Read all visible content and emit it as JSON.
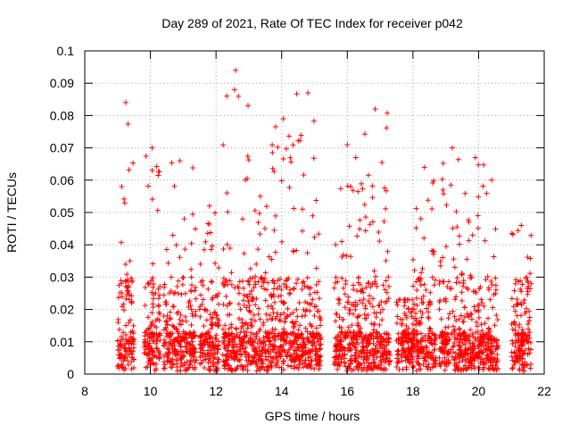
{
  "chart_data": {
    "type": "scatter",
    "title": "Day 289 of 2021, Rate Of TEC Index for receiver p042",
    "xlabel": "GPS time / hours",
    "ylabel": "ROTI / TECUs",
    "xlim": [
      8,
      22
    ],
    "ylim": [
      0,
      0.1
    ],
    "x_ticks": [
      "8",
      "10",
      "12",
      "14",
      "16",
      "18",
      "20",
      "22"
    ],
    "y_ticks": [
      "0",
      "0.01",
      "0.02",
      "0.03",
      "0.04",
      "0.05",
      "0.06",
      "0.07",
      "0.08",
      "0.09",
      "0.1"
    ],
    "grid": "dotted",
    "marker": "+",
    "series_color": "#ff0000",
    "clusters": [
      {
        "x_start": 9.0,
        "x_end": 9.5,
        "peak": 0.084
      },
      {
        "x_start": 9.8,
        "x_end": 10.3,
        "peak": 0.07
      },
      {
        "x_start": 10.4,
        "x_end": 11.4,
        "peak": 0.066
      },
      {
        "x_start": 11.5,
        "x_end": 12.1,
        "peak": 0.052
      },
      {
        "x_start": 12.2,
        "x_end": 13.0,
        "peak": 0.094
      },
      {
        "x_start": 13.0,
        "x_end": 13.7,
        "peak": 0.055
      },
      {
        "x_start": 13.7,
        "x_end": 14.4,
        "peak": 0.079
      },
      {
        "x_start": 14.4,
        "x_end": 15.2,
        "peak": 0.087
      },
      {
        "x_start": 15.6,
        "x_end": 16.4,
        "peak": 0.071
      },
      {
        "x_start": 16.4,
        "x_end": 17.3,
        "peak": 0.082
      },
      {
        "x_start": 17.5,
        "x_end": 18.0,
        "peak": 0.023
      },
      {
        "x_start": 18.0,
        "x_end": 18.7,
        "peak": 0.064
      },
      {
        "x_start": 18.8,
        "x_end": 19.6,
        "peak": 0.07
      },
      {
        "x_start": 19.6,
        "x_end": 20.2,
        "peak": 0.067
      },
      {
        "x_start": 20.2,
        "x_end": 20.6,
        "peak": 0.06
      },
      {
        "x_start": 21.0,
        "x_end": 21.6,
        "peak": 0.046
      }
    ]
  }
}
